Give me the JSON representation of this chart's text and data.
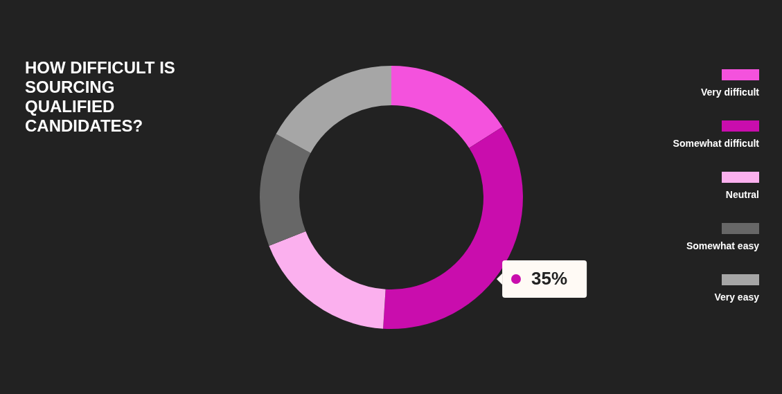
{
  "chart_data": {
    "type": "donut",
    "title": "HOW DIFFICULT IS SOURCING QUALIFIED CANDIDATES?",
    "categories": [
      "Very difficult",
      "Somewhat difficult",
      "Neutral",
      "Somewhat easy",
      "Very easy"
    ],
    "values": [
      16,
      35,
      18,
      14,
      17
    ],
    "colors": [
      "#f452dd",
      "#c90dad",
      "#fbb0ee",
      "#676767",
      "#a6a6a6"
    ],
    "value_labels": [
      null,
      "35%",
      null,
      null,
      null
    ],
    "legend": "right"
  }
}
